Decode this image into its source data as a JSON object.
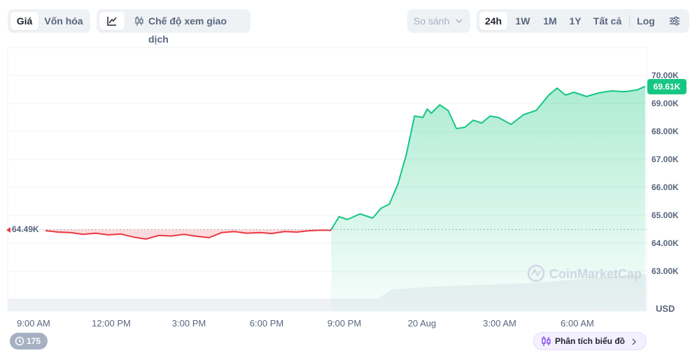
{
  "toolbar": {
    "tabs": [
      "Giá",
      "Vốn hóa"
    ],
    "trading_mode_label": "Chế độ xem giao dịch",
    "compare_label": "So sánh",
    "ranges": [
      "24h",
      "1W",
      "1M",
      "1Y",
      "Tất cả"
    ],
    "log_label": "Log",
    "icons": [
      "line-chart-icon",
      "candlestick-icon",
      "chevron-down-icon",
      "settings-sliders-icon"
    ]
  },
  "chart_data": {
    "type": "line",
    "title": "",
    "xlabel": "",
    "ylabel": "USD",
    "x_ticks": [
      "9:00 AM",
      "12:00 PM",
      "3:00 PM",
      "6:00 PM",
      "9:00 PM",
      "20 Aug",
      "3:00 AM",
      "6:00 AM"
    ],
    "y_ticks": [
      "63.00K",
      "64.00K",
      "65.00K",
      "66.00K",
      "67.00K",
      "68.00K",
      "69.00K",
      "70.00K"
    ],
    "ylim": [
      62,
      70.5
    ],
    "baseline": 64.49,
    "baseline_label": "64.49K",
    "current_label": "69.61K",
    "x": [
      "08:00",
      "08:30",
      "09:00",
      "09:30",
      "10:00",
      "10:30",
      "11:00",
      "11:30",
      "12:00",
      "12:30",
      "13:00",
      "13:30",
      "14:00",
      "14:30",
      "15:00",
      "15:30",
      "16:00",
      "16:30",
      "17:00",
      "17:30",
      "18:00",
      "18:30",
      "19:00",
      "19:20",
      "19:40",
      "20:00",
      "20:30",
      "21:00",
      "21:20",
      "21:40",
      "22:00",
      "22:20",
      "22:40",
      "23:00",
      "23:10",
      "23:20",
      "23:40",
      "00:00",
      "00:20",
      "00:40",
      "01:00",
      "01:20",
      "01:40",
      "02:00",
      "02:30",
      "03:00",
      "03:30",
      "04:00",
      "04:20",
      "04:40",
      "05:00",
      "05:30",
      "06:00",
      "06:30",
      "07:00",
      "07:30",
      "07:50"
    ],
    "values": [
      64.45,
      64.4,
      64.38,
      64.32,
      64.36,
      64.3,
      64.33,
      64.22,
      64.15,
      64.28,
      64.26,
      64.32,
      64.25,
      64.2,
      64.38,
      64.42,
      64.36,
      64.38,
      64.35,
      64.42,
      64.4,
      64.45,
      64.47,
      64.46,
      64.95,
      64.85,
      65.05,
      64.9,
      65.25,
      65.4,
      66.1,
      67.15,
      68.55,
      68.5,
      68.8,
      68.65,
      68.95,
      68.75,
      68.1,
      68.15,
      68.4,
      68.3,
      68.55,
      68.5,
      68.25,
      68.6,
      68.75,
      69.3,
      69.55,
      69.3,
      69.4,
      69.25,
      69.38,
      69.45,
      69.42,
      69.48,
      69.61
    ],
    "volume_note": "",
    "grid": true,
    "legend": "none",
    "colors": {
      "up": "#16c784",
      "down": "#ea3943",
      "up_fill": "#16c784",
      "down_fill": "#ea3943"
    }
  },
  "footer": {
    "watermark": "CoinMarketCap",
    "history_count": "175",
    "analysis_label": "Phân tích biểu đồ"
  }
}
